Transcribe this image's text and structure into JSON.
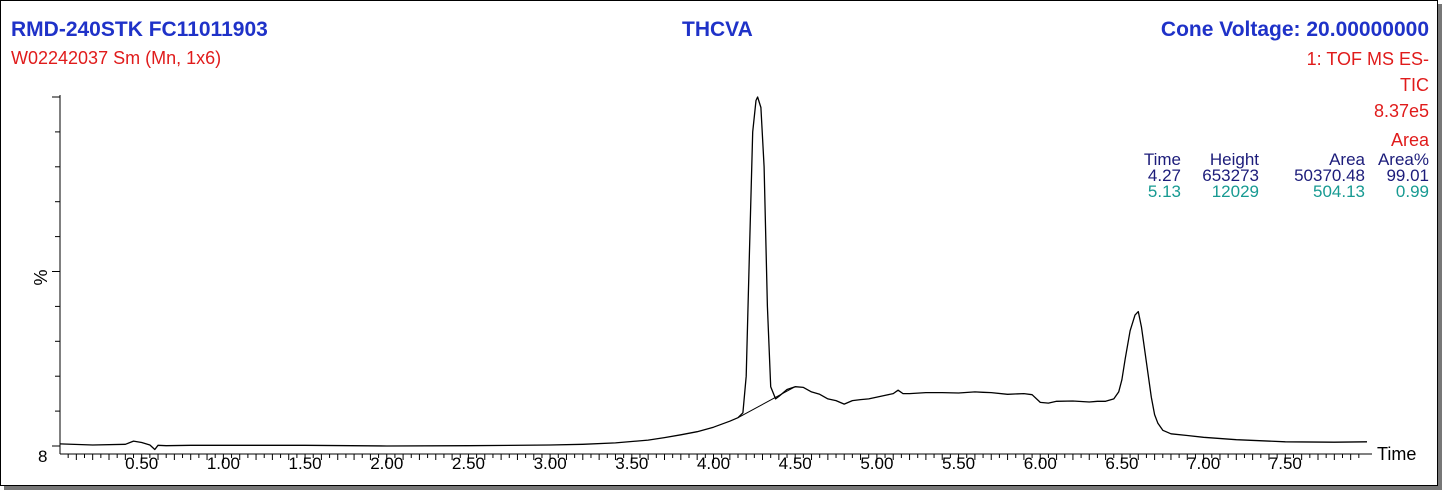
{
  "header": {
    "sample": "RMD-240STK FC11011903",
    "compound": "THCVA",
    "cone_voltage": "Cone Voltage: 20.00000000",
    "file": "W02242037 Sm (Mn, 1x6)",
    "function": "1: TOF MS ES-",
    "trace": "TIC",
    "scale": "8.37e5",
    "area_label": "Area"
  },
  "colors": {
    "header_blue": "#1f32c8",
    "red": "#e01b1b",
    "navy": "#1c1c7a",
    "teal": "#179a92",
    "trace": "#000000"
  },
  "peak_table": {
    "headers": [
      "Time",
      "Height",
      "Area",
      "Area%"
    ],
    "rows": [
      [
        "4.27",
        "653273",
        "50370.48",
        "99.01"
      ],
      [
        "5.13",
        "12029",
        "504.13",
        "0.99"
      ]
    ]
  },
  "chart_data": {
    "type": "line",
    "xlabel": "Time",
    "ylabel": "%",
    "xlim": [
      0.0,
      8.0
    ],
    "ylim": [
      0,
      100
    ],
    "y_baseline_label": "8",
    "xtick_labels": [
      "0.50",
      "1.00",
      "1.50",
      "2.00",
      "2.50",
      "3.00",
      "3.50",
      "4.00",
      "4.50",
      "5.00",
      "5.50",
      "6.00",
      "6.50",
      "7.00",
      "7.50"
    ],
    "xticks": [
      0.5,
      1.0,
      1.5,
      2.0,
      2.5,
      3.0,
      3.5,
      4.0,
      4.5,
      5.0,
      5.5,
      6.0,
      6.5,
      7.0,
      7.5
    ],
    "series": [
      {
        "x": [
          0.0,
          0.2,
          0.4,
          0.45,
          0.5,
          0.55,
          0.58,
          0.6,
          0.65,
          0.8,
          1.0,
          1.5,
          2.0,
          2.5,
          3.0,
          3.2,
          3.4,
          3.6,
          3.7,
          3.8,
          3.9,
          4.0,
          4.1,
          4.15,
          4.18,
          4.2,
          4.22,
          4.24,
          4.26,
          4.27,
          4.29,
          4.31,
          4.33,
          4.35,
          4.38,
          4.4,
          4.45,
          4.5,
          4.55,
          4.6,
          4.65,
          4.7,
          4.75,
          4.8,
          4.85,
          4.9,
          4.95,
          5.0,
          5.05,
          5.1,
          5.13,
          5.16,
          5.2,
          5.3,
          5.4,
          5.5,
          5.6,
          5.65,
          5.7,
          5.8,
          5.9,
          5.95,
          6.0,
          6.05,
          6.1,
          6.2,
          6.3,
          6.35,
          6.4,
          6.45,
          6.48,
          6.5,
          6.52,
          6.55,
          6.58,
          6.6,
          6.62,
          6.65,
          6.68,
          6.7,
          6.72,
          6.75,
          6.8,
          6.9,
          7.0,
          7.2,
          7.5,
          7.8,
          8.0
        ],
        "y": [
          0.6,
          0.3,
          0.5,
          1.4,
          1.0,
          0.3,
          -1.0,
          0.2,
          0.1,
          0.2,
          0.2,
          0.2,
          0.0,
          0.1,
          0.3,
          0.5,
          0.9,
          1.7,
          2.4,
          3.2,
          4.1,
          5.4,
          7.1,
          8.1,
          9.5,
          20.0,
          55.0,
          90.0,
          99.0,
          100.0,
          97.0,
          80.0,
          40.0,
          17.0,
          13.5,
          14.2,
          16.2,
          17.0,
          16.8,
          15.5,
          14.8,
          13.5,
          13.0,
          12.0,
          13.0,
          13.3,
          13.5,
          14.0,
          14.5,
          15.0,
          16.0,
          15.0,
          15.0,
          15.3,
          15.3,
          15.2,
          15.5,
          15.4,
          15.3,
          14.8,
          15.0,
          14.7,
          12.5,
          12.3,
          12.8,
          12.9,
          12.6,
          12.8,
          12.8,
          13.5,
          15.5,
          19.0,
          25.0,
          33.0,
          37.5,
          38.5,
          34.0,
          24.0,
          14.0,
          9.0,
          6.5,
          4.5,
          3.5,
          3.0,
          2.5,
          1.8,
          1.2,
          1.1,
          1.2
        ]
      }
    ],
    "integration_baseline": {
      "x": [
        4.15,
        4.5
      ],
      "y": [
        8.1,
        17.0
      ]
    }
  }
}
